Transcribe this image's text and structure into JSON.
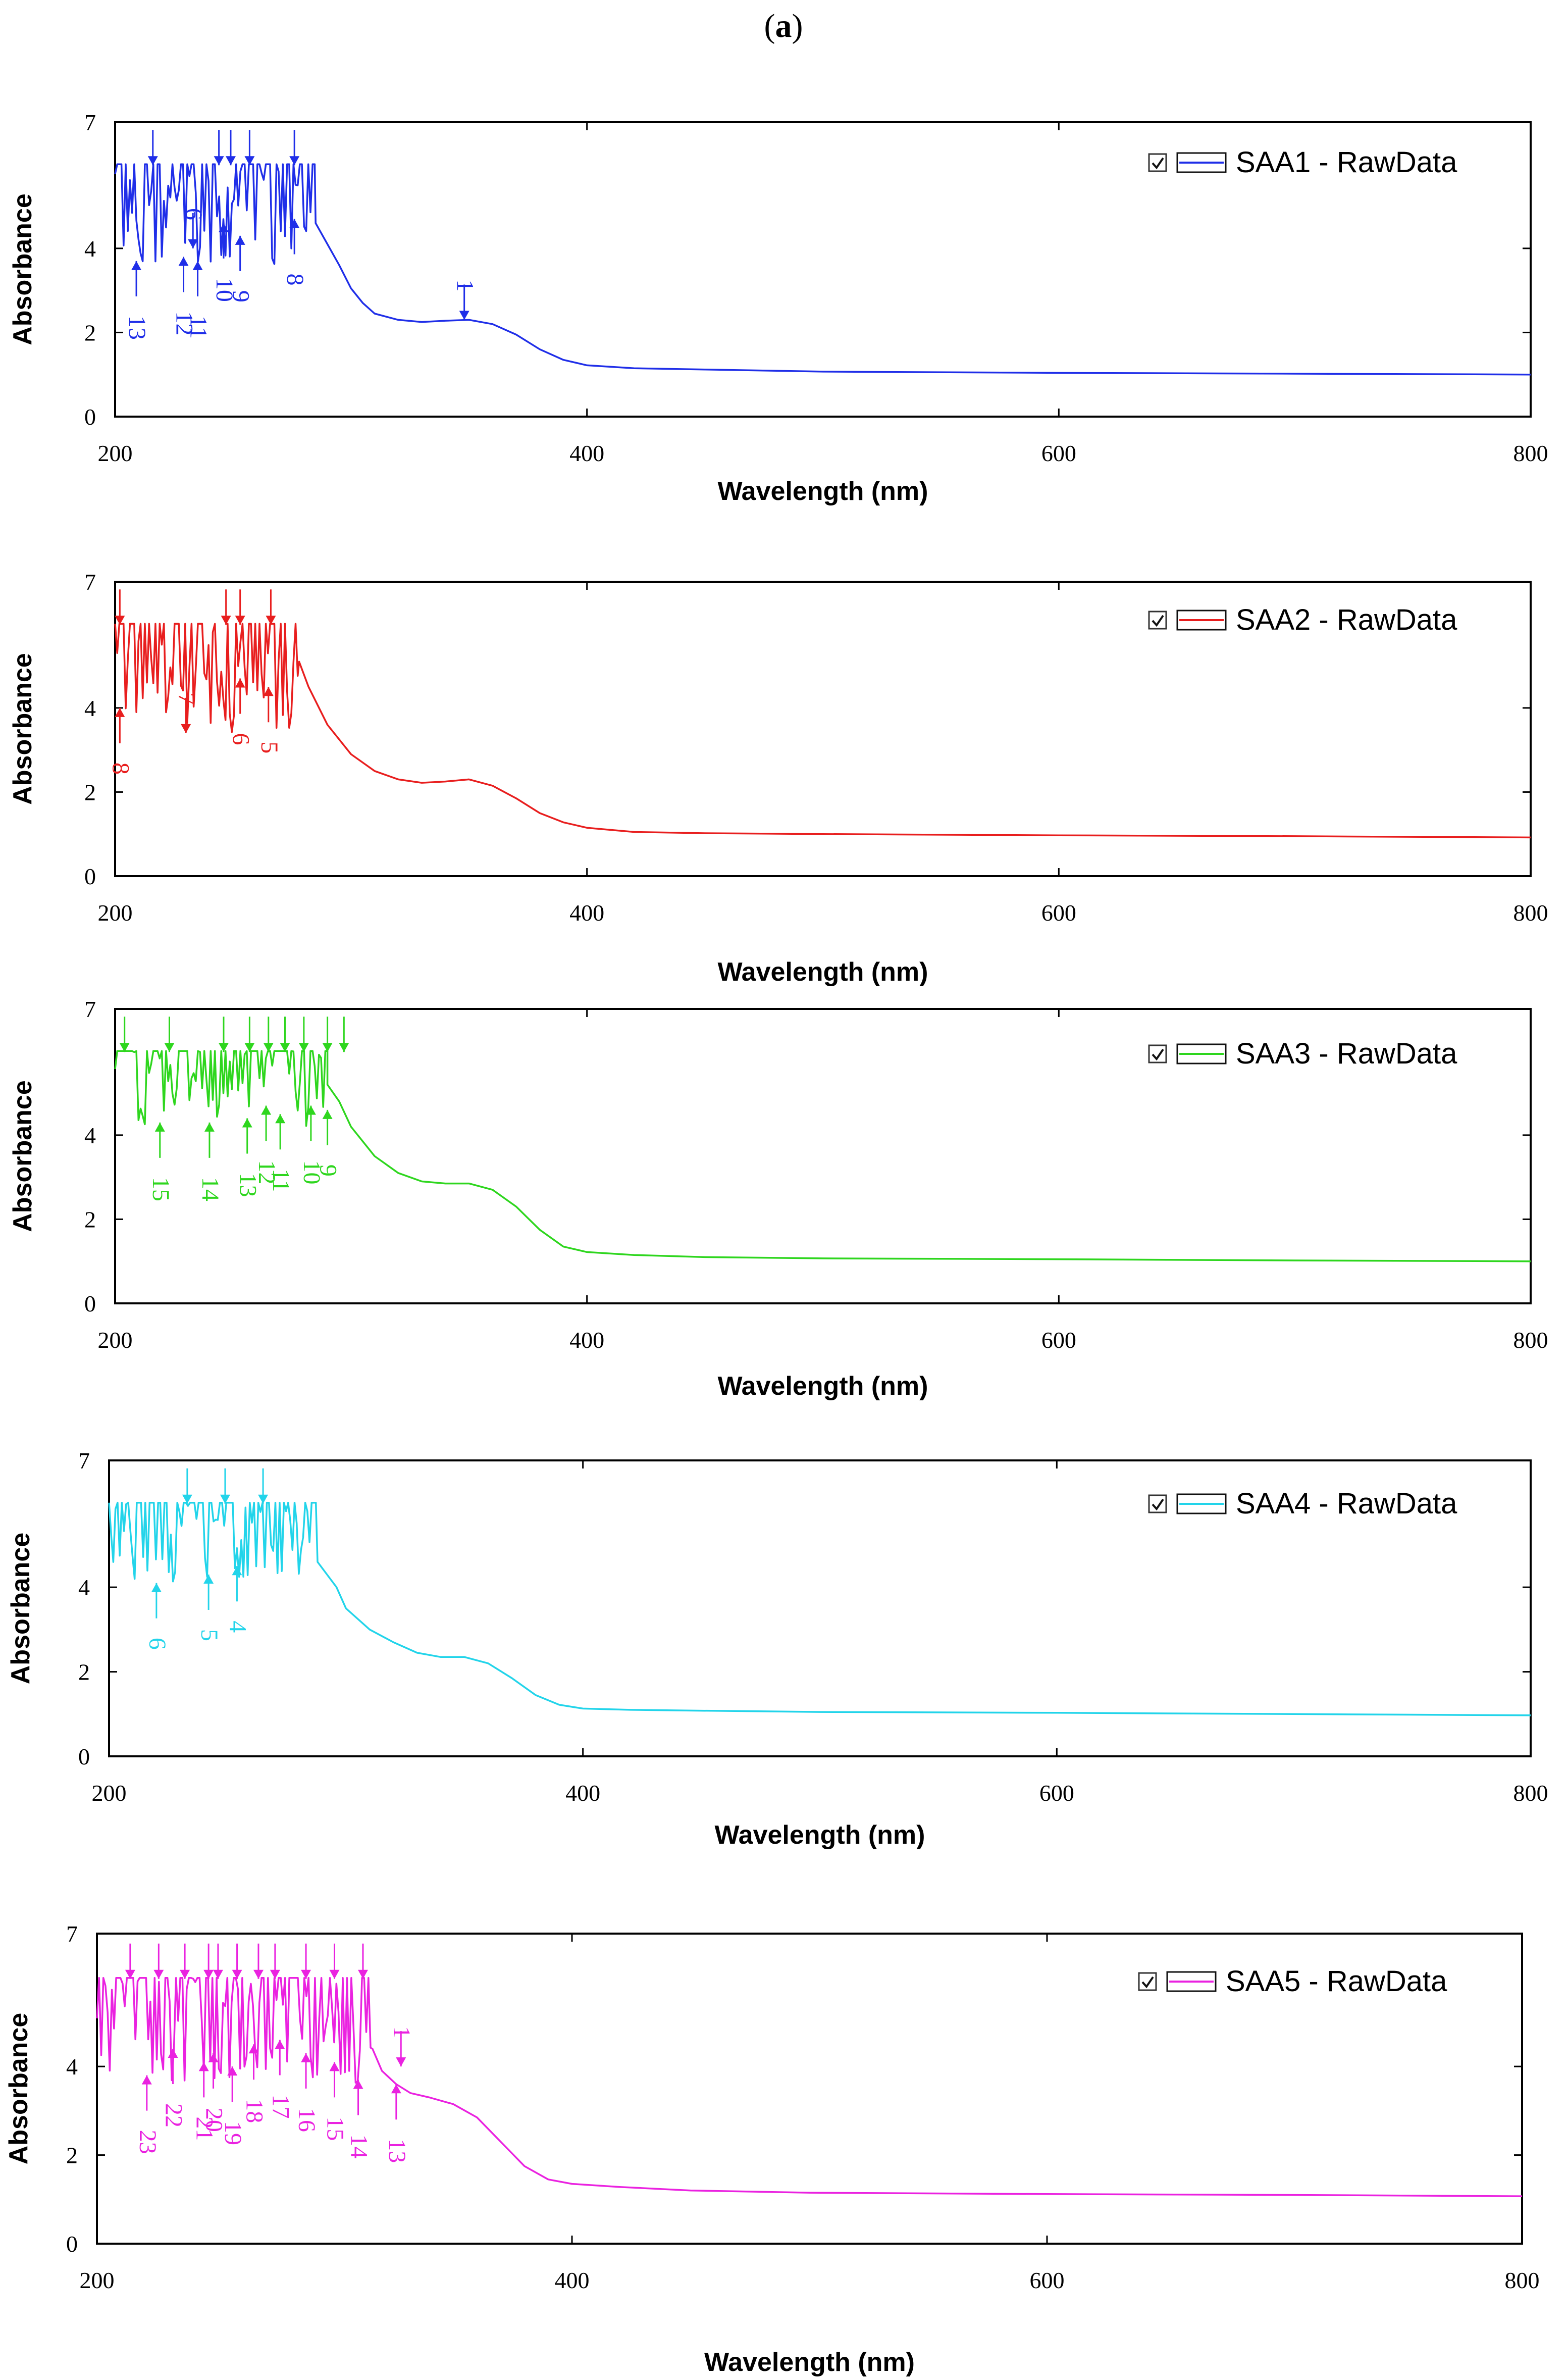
{
  "figure_label": "a",
  "chart_data": [
    {
      "type": "line",
      "legend": "SAA1 - RawData",
      "color": "#1f2ee8",
      "xlabel": "Wavelength (nm)",
      "ylabel": "Absorbance",
      "xlim": [
        200,
        800
      ],
      "ylim": [
        0,
        7
      ],
      "xticks": [
        "200",
        "400",
        "600",
        "800"
      ],
      "yticks": [
        "0",
        "2",
        "4",
        "7"
      ],
      "curve": [
        [
          285,
          4.6
        ],
        [
          290,
          4.1
        ],
        [
          295,
          3.6
        ],
        [
          300,
          3.05
        ],
        [
          305,
          2.7
        ],
        [
          310,
          2.45
        ],
        [
          320,
          2.3
        ],
        [
          330,
          2.25
        ],
        [
          340,
          2.28
        ],
        [
          350,
          2.3
        ],
        [
          360,
          2.2
        ],
        [
          370,
          1.95
        ],
        [
          380,
          1.6
        ],
        [
          390,
          1.35
        ],
        [
          400,
          1.22
        ],
        [
          420,
          1.15
        ],
        [
          450,
          1.12
        ],
        [
          500,
          1.07
        ],
        [
          600,
          1.04
        ],
        [
          700,
          1.02
        ],
        [
          800,
          1.0
        ]
      ],
      "noise": {
        "start": 200,
        "end": 285,
        "cap": 6.0,
        "floor": 3.6
      },
      "peaks": [
        {
          "label": "1",
          "x": 348,
          "y": 2.3,
          "dir": "down"
        },
        {
          "label": "6",
          "x": 233,
          "y": 4.0,
          "dir": "down"
        },
        {
          "label": "8",
          "x": 276,
          "y": 4.7,
          "dir": "up"
        },
        {
          "label": "9",
          "x": 253,
          "y": 4.3,
          "dir": "up"
        },
        {
          "label": "10",
          "x": 246,
          "y": 4.6,
          "dir": "up"
        },
        {
          "label": "11",
          "x": 235,
          "y": 3.7,
          "dir": "up"
        },
        {
          "label": "12",
          "x": 229,
          "y": 3.8,
          "dir": "up"
        },
        {
          "label": "13",
          "x": 209,
          "y": 3.7,
          "dir": "up"
        }
      ],
      "top_marks": [
        216,
        244,
        249,
        257,
        276
      ]
    },
    {
      "type": "line",
      "legend": "SAA2 - RawData",
      "color": "#e81e1e",
      "xlabel": "Wavelength (nm)",
      "ylabel": "Absorbance",
      "xlim": [
        200,
        800
      ],
      "ylim": [
        0,
        7
      ],
      "xticks": [
        "200",
        "400",
        "600",
        "800"
      ],
      "yticks": [
        "0",
        "2",
        "4",
        "7"
      ],
      "curve": [
        [
          278,
          5.1
        ],
        [
          282,
          4.5
        ],
        [
          290,
          3.6
        ],
        [
          300,
          2.9
        ],
        [
          310,
          2.5
        ],
        [
          320,
          2.3
        ],
        [
          330,
          2.22
        ],
        [
          340,
          2.25
        ],
        [
          350,
          2.3
        ],
        [
          360,
          2.15
        ],
        [
          370,
          1.85
        ],
        [
          380,
          1.5
        ],
        [
          390,
          1.28
        ],
        [
          400,
          1.15
        ],
        [
          420,
          1.05
        ],
        [
          450,
          1.02
        ],
        [
          500,
          1.0
        ],
        [
          600,
          0.97
        ],
        [
          700,
          0.95
        ],
        [
          800,
          0.92
        ]
      ],
      "noise": {
        "start": 200,
        "end": 278,
        "cap": 6.0,
        "floor": 3.4
      },
      "peaks": [
        {
          "label": "5",
          "x": 265,
          "y": 4.5,
          "dir": "up"
        },
        {
          "label": "6",
          "x": 253,
          "y": 4.7,
          "dir": "up"
        },
        {
          "label": "7",
          "x": 230,
          "y": 3.4,
          "dir": "down"
        },
        {
          "label": "8",
          "x": 202,
          "y": 4.0,
          "dir": "up"
        }
      ],
      "top_marks": [
        202,
        247,
        253,
        266
      ]
    },
    {
      "type": "line",
      "legend": "SAA3 - RawData",
      "color": "#2ed61e",
      "xlabel": "Wavelength (nm)",
      "ylabel": "Absorbance",
      "xlim": [
        200,
        800
      ],
      "ylim": [
        0,
        7
      ],
      "xticks": [
        "200",
        "400",
        "600",
        "800"
      ],
      "yticks": [
        "0",
        "2",
        "4",
        "7"
      ],
      "curve": [
        [
          290,
          5.2
        ],
        [
          295,
          4.8
        ],
        [
          300,
          4.2
        ],
        [
          310,
          3.5
        ],
        [
          320,
          3.1
        ],
        [
          330,
          2.9
        ],
        [
          340,
          2.85
        ],
        [
          350,
          2.85
        ],
        [
          360,
          2.7
        ],
        [
          370,
          2.3
        ],
        [
          380,
          1.75
        ],
        [
          390,
          1.35
        ],
        [
          400,
          1.22
        ],
        [
          420,
          1.15
        ],
        [
          450,
          1.1
        ],
        [
          500,
          1.07
        ],
        [
          600,
          1.05
        ],
        [
          700,
          1.02
        ],
        [
          800,
          1.0
        ]
      ],
      "noise": {
        "start": 200,
        "end": 290,
        "cap": 6.0,
        "floor": 4.2
      },
      "peaks": [
        {
          "label": "9",
          "x": 290,
          "y": 4.6,
          "dir": "up"
        },
        {
          "label": "10",
          "x": 283,
          "y": 4.7,
          "dir": "up"
        },
        {
          "label": "11",
          "x": 270,
          "y": 4.5,
          "dir": "up"
        },
        {
          "label": "12",
          "x": 264,
          "y": 4.7,
          "dir": "up"
        },
        {
          "label": "13",
          "x": 256,
          "y": 4.4,
          "dir": "up"
        },
        {
          "label": "14",
          "x": 240,
          "y": 4.3,
          "dir": "up"
        },
        {
          "label": "15",
          "x": 219,
          "y": 4.3,
          "dir": "up"
        }
      ],
      "top_marks": [
        204,
        223,
        246,
        257,
        265,
        272,
        280,
        290,
        297
      ]
    },
    {
      "type": "line",
      "legend": "SAA4 - RawData",
      "color": "#22d4ea",
      "xlabel": "Wavelength (nm)",
      "ylabel": "Absorbance",
      "xlim": [
        200,
        800
      ],
      "ylim": [
        0,
        7
      ],
      "xticks": [
        "200",
        "400",
        "600",
        "800"
      ],
      "yticks": [
        "0",
        "2",
        "4",
        "7"
      ],
      "curve": [
        [
          288,
          4.6
        ],
        [
          292,
          4.3
        ],
        [
          296,
          4.0
        ],
        [
          300,
          3.5
        ],
        [
          310,
          3.0
        ],
        [
          320,
          2.7
        ],
        [
          330,
          2.45
        ],
        [
          340,
          2.35
        ],
        [
          350,
          2.35
        ],
        [
          360,
          2.2
        ],
        [
          370,
          1.85
        ],
        [
          380,
          1.45
        ],
        [
          390,
          1.22
        ],
        [
          400,
          1.13
        ],
        [
          420,
          1.1
        ],
        [
          450,
          1.08
        ],
        [
          500,
          1.05
        ],
        [
          600,
          1.03
        ],
        [
          700,
          1.0
        ],
        [
          800,
          0.97
        ]
      ],
      "noise": {
        "start": 200,
        "end": 288,
        "cap": 6.0,
        "floor": 4.1
      },
      "peaks": [
        {
          "label": "4",
          "x": 254,
          "y": 4.5,
          "dir": "up"
        },
        {
          "label": "5",
          "x": 242,
          "y": 4.3,
          "dir": "up"
        },
        {
          "label": "6",
          "x": 220,
          "y": 4.1,
          "dir": "up"
        }
      ],
      "top_marks": [
        233,
        249,
        265
      ]
    },
    {
      "type": "line",
      "legend": "SAA5 - RawData",
      "color": "#ea22e0",
      "xlabel": "Wavelength (nm)",
      "ylabel": "Absorbance",
      "xlim": [
        200,
        800
      ],
      "ylim": [
        0,
        7
      ],
      "xticks": [
        "200",
        "400",
        "600",
        "800"
      ],
      "yticks": [
        "0",
        "2",
        "4",
        "7"
      ],
      "curve": [
        [
          316,
          4.4
        ],
        [
          320,
          3.9
        ],
        [
          326,
          3.6
        ],
        [
          332,
          3.4
        ],
        [
          340,
          3.3
        ],
        [
          350,
          3.15
        ],
        [
          360,
          2.85
        ],
        [
          370,
          2.3
        ],
        [
          380,
          1.75
        ],
        [
          390,
          1.45
        ],
        [
          400,
          1.35
        ],
        [
          420,
          1.28
        ],
        [
          450,
          1.2
        ],
        [
          500,
          1.15
        ],
        [
          600,
          1.12
        ],
        [
          700,
          1.1
        ],
        [
          800,
          1.07
        ]
      ],
      "noise": {
        "start": 200,
        "end": 316,
        "cap": 6.0,
        "floor": 3.6
      },
      "peaks": [
        {
          "label": "1",
          "x": 328,
          "y": 4.0,
          "dir": "down"
        },
        {
          "label": "13",
          "x": 326,
          "y": 3.6,
          "dir": "up"
        },
        {
          "label": "14",
          "x": 310,
          "y": 3.7,
          "dir": "up"
        },
        {
          "label": "15",
          "x": 300,
          "y": 4.1,
          "dir": "up"
        },
        {
          "label": "16",
          "x": 288,
          "y": 4.3,
          "dir": "up"
        },
        {
          "label": "17",
          "x": 277,
          "y": 4.6,
          "dir": "up"
        },
        {
          "label": "18",
          "x": 266,
          "y": 4.5,
          "dir": "up"
        },
        {
          "label": "19",
          "x": 257,
          "y": 4.0,
          "dir": "up"
        },
        {
          "label": "20",
          "x": 249,
          "y": 4.3,
          "dir": "up"
        },
        {
          "label": "21",
          "x": 245,
          "y": 4.1,
          "dir": "up"
        },
        {
          "label": "22",
          "x": 232,
          "y": 4.4,
          "dir": "up"
        },
        {
          "label": "23",
          "x": 221,
          "y": 3.8,
          "dir": "up"
        }
      ],
      "top_marks": [
        214,
        226,
        237,
        247,
        251,
        259,
        268,
        275,
        288,
        300,
        312
      ]
    }
  ]
}
